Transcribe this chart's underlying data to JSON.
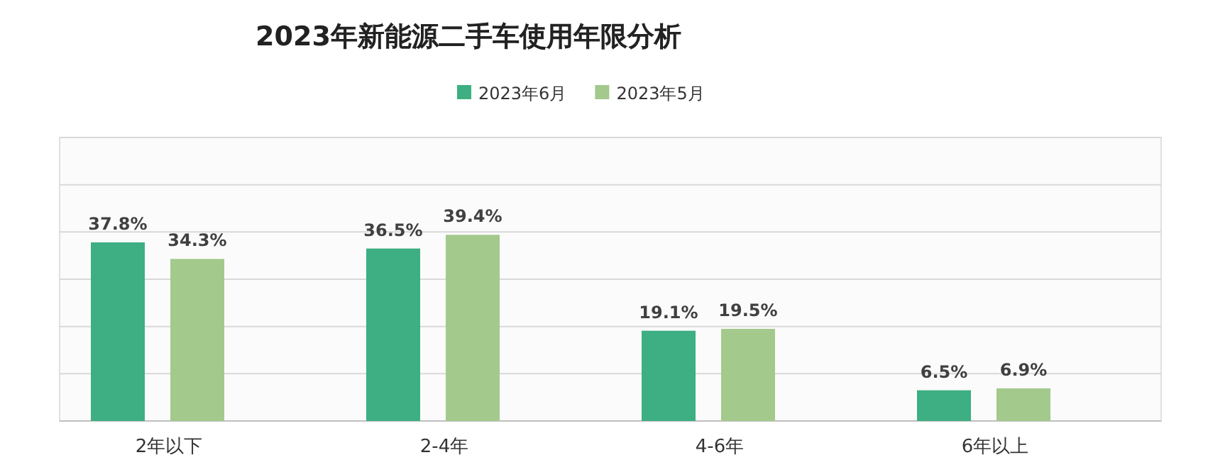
{
  "chart_data": {
    "type": "bar",
    "title": "2023年新能源二手车使用年限分析",
    "categories": [
      "2年以下",
      "2-4年",
      "4-6年",
      "6年以上"
    ],
    "series": [
      {
        "name": "2023年6月",
        "color": "#3daf82",
        "values": [
          37.8,
          36.5,
          19.1,
          6.5
        ],
        "value_labels": [
          "37.8%",
          "36.5%",
          "19.1%",
          "6.5%"
        ]
      },
      {
        "name": "2023年5月",
        "color": "#a3c98c",
        "values": [
          34.3,
          39.4,
          19.5,
          6.9
        ],
        "value_labels": [
          "34.3%",
          "39.4%",
          "19.5%",
          "6.9%"
        ]
      }
    ],
    "ylim": [
      0,
      60
    ],
    "yticks": [
      {
        "value": 0,
        "label": null
      },
      {
        "value": 10,
        "label": null
      },
      {
        "value": 20,
        "label": null
      },
      {
        "value": 30,
        "label": null
      },
      {
        "value": 40,
        "label": null
      },
      {
        "value": 50,
        "label": null
      },
      {
        "value": 60,
        "label": null
      }
    ],
    "grid": "y",
    "legend": "top",
    "tick_labels": "x"
  }
}
